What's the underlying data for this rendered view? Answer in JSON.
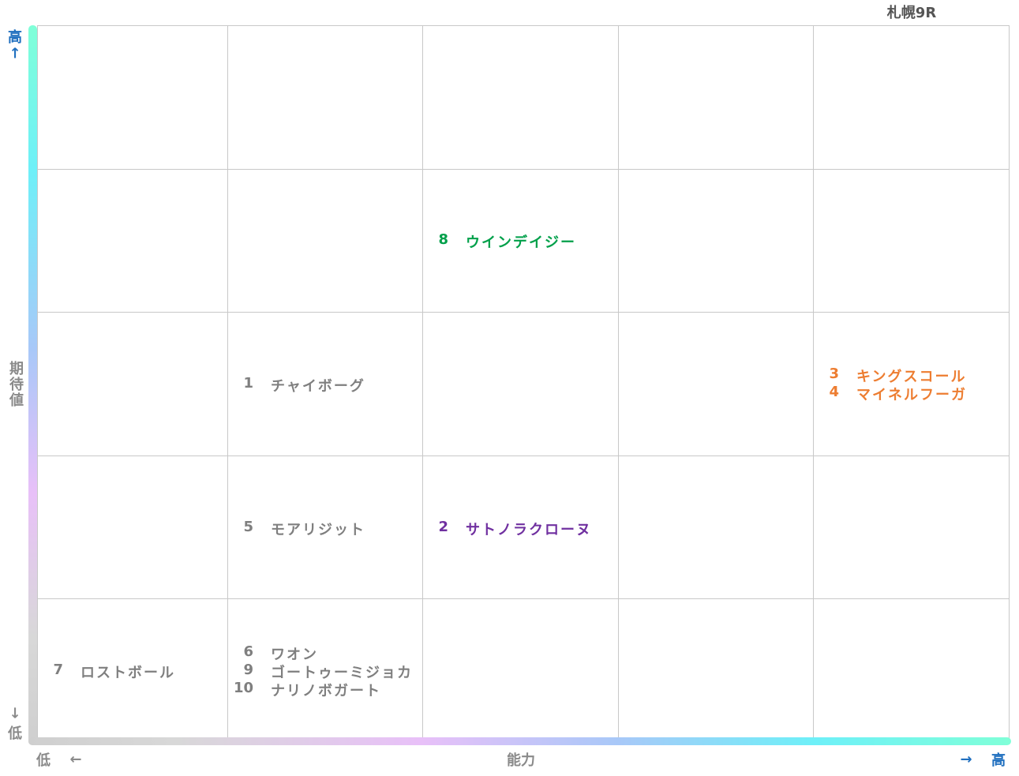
{
  "title": "札幌9R",
  "y_axis": {
    "high": "高",
    "high_arrow": "↑",
    "label": "期待値",
    "low_arrow": "↓",
    "low": "低"
  },
  "x_axis": {
    "low": "低",
    "low_arrow": "←",
    "label": "能力",
    "high_arrow": "→",
    "high": "高"
  },
  "grid": [
    [
      [],
      [],
      [],
      [],
      []
    ],
    [
      [],
      [],
      [
        {
          "number": "8",
          "name": "ウインデイジー",
          "color": "#00a04a"
        }
      ],
      [],
      []
    ],
    [
      [],
      [
        {
          "number": "1",
          "name": "チャイボーグ",
          "color": "#7f7f7f"
        }
      ],
      [],
      [],
      [
        {
          "number": "3",
          "name": "キングスコール",
          "color": "#ed7d31"
        },
        {
          "number": "4",
          "name": "マイネルフーガ",
          "color": "#ed7d31"
        }
      ]
    ],
    [
      [],
      [
        {
          "number": "5",
          "name": "モアリジット",
          "color": "#7f7f7f"
        }
      ],
      [
        {
          "number": "2",
          "name": "サトノラクローヌ",
          "color": "#7030a0"
        }
      ],
      [],
      []
    ],
    [
      [
        {
          "number": "7",
          "name": "ロストボール",
          "color": "#7f7f7f"
        }
      ],
      [
        {
          "number": "6",
          "name": "ワオン",
          "color": "#7f7f7f"
        },
        {
          "number": "9",
          "name": "ゴートゥーミジョカ",
          "color": "#7f7f7f"
        },
        {
          "number": "10",
          "name": "ナリノボガート",
          "color": "#7f7f7f"
        }
      ],
      [],
      [],
      []
    ]
  ]
}
